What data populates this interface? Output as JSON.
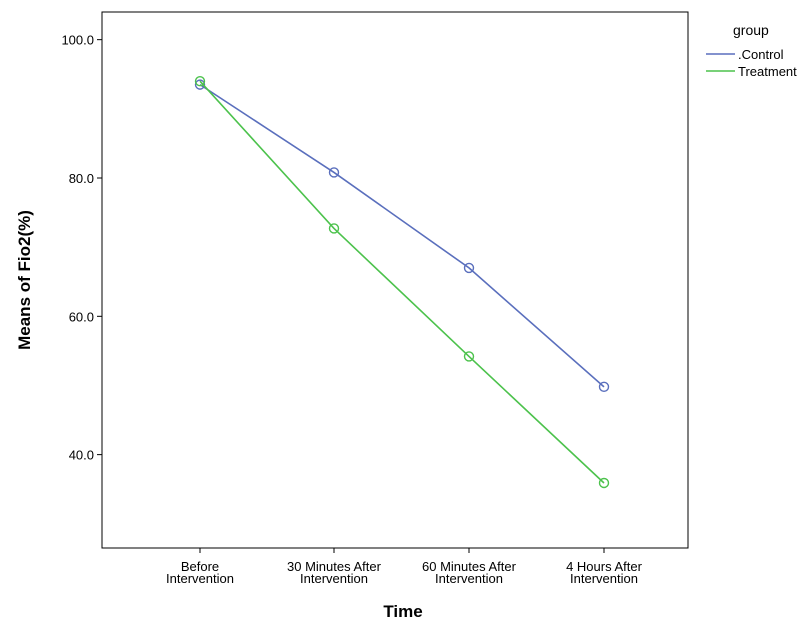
{
  "chart_data": {
    "type": "line",
    "xlabel": "Time",
    "ylabel": "Means of  Fio2(%)",
    "categories": [
      [
        "Before",
        "Intervention"
      ],
      [
        "30 Minutes After",
        "Intervention"
      ],
      [
        "60 Minutes After",
        "Intervention"
      ],
      [
        "4 Hours After",
        "Intervention"
      ]
    ],
    "yticks": [
      "40.0",
      "60.0",
      "80.0",
      "100.0"
    ],
    "ytick_values": [
      40,
      60,
      80,
      100
    ],
    "ylim": [
      26.5,
      104
    ],
    "grid": false,
    "legend": {
      "title": "group",
      "placement": "right"
    },
    "series": [
      {
        "name": ".Control",
        "color": "#5a6fbd",
        "values": [
          93.5,
          80.8,
          67.0,
          49.8
        ]
      },
      {
        "name": "Treatment",
        "color": "#4cc24c",
        "values": [
          94.0,
          72.7,
          54.2,
          35.9
        ]
      }
    ]
  }
}
